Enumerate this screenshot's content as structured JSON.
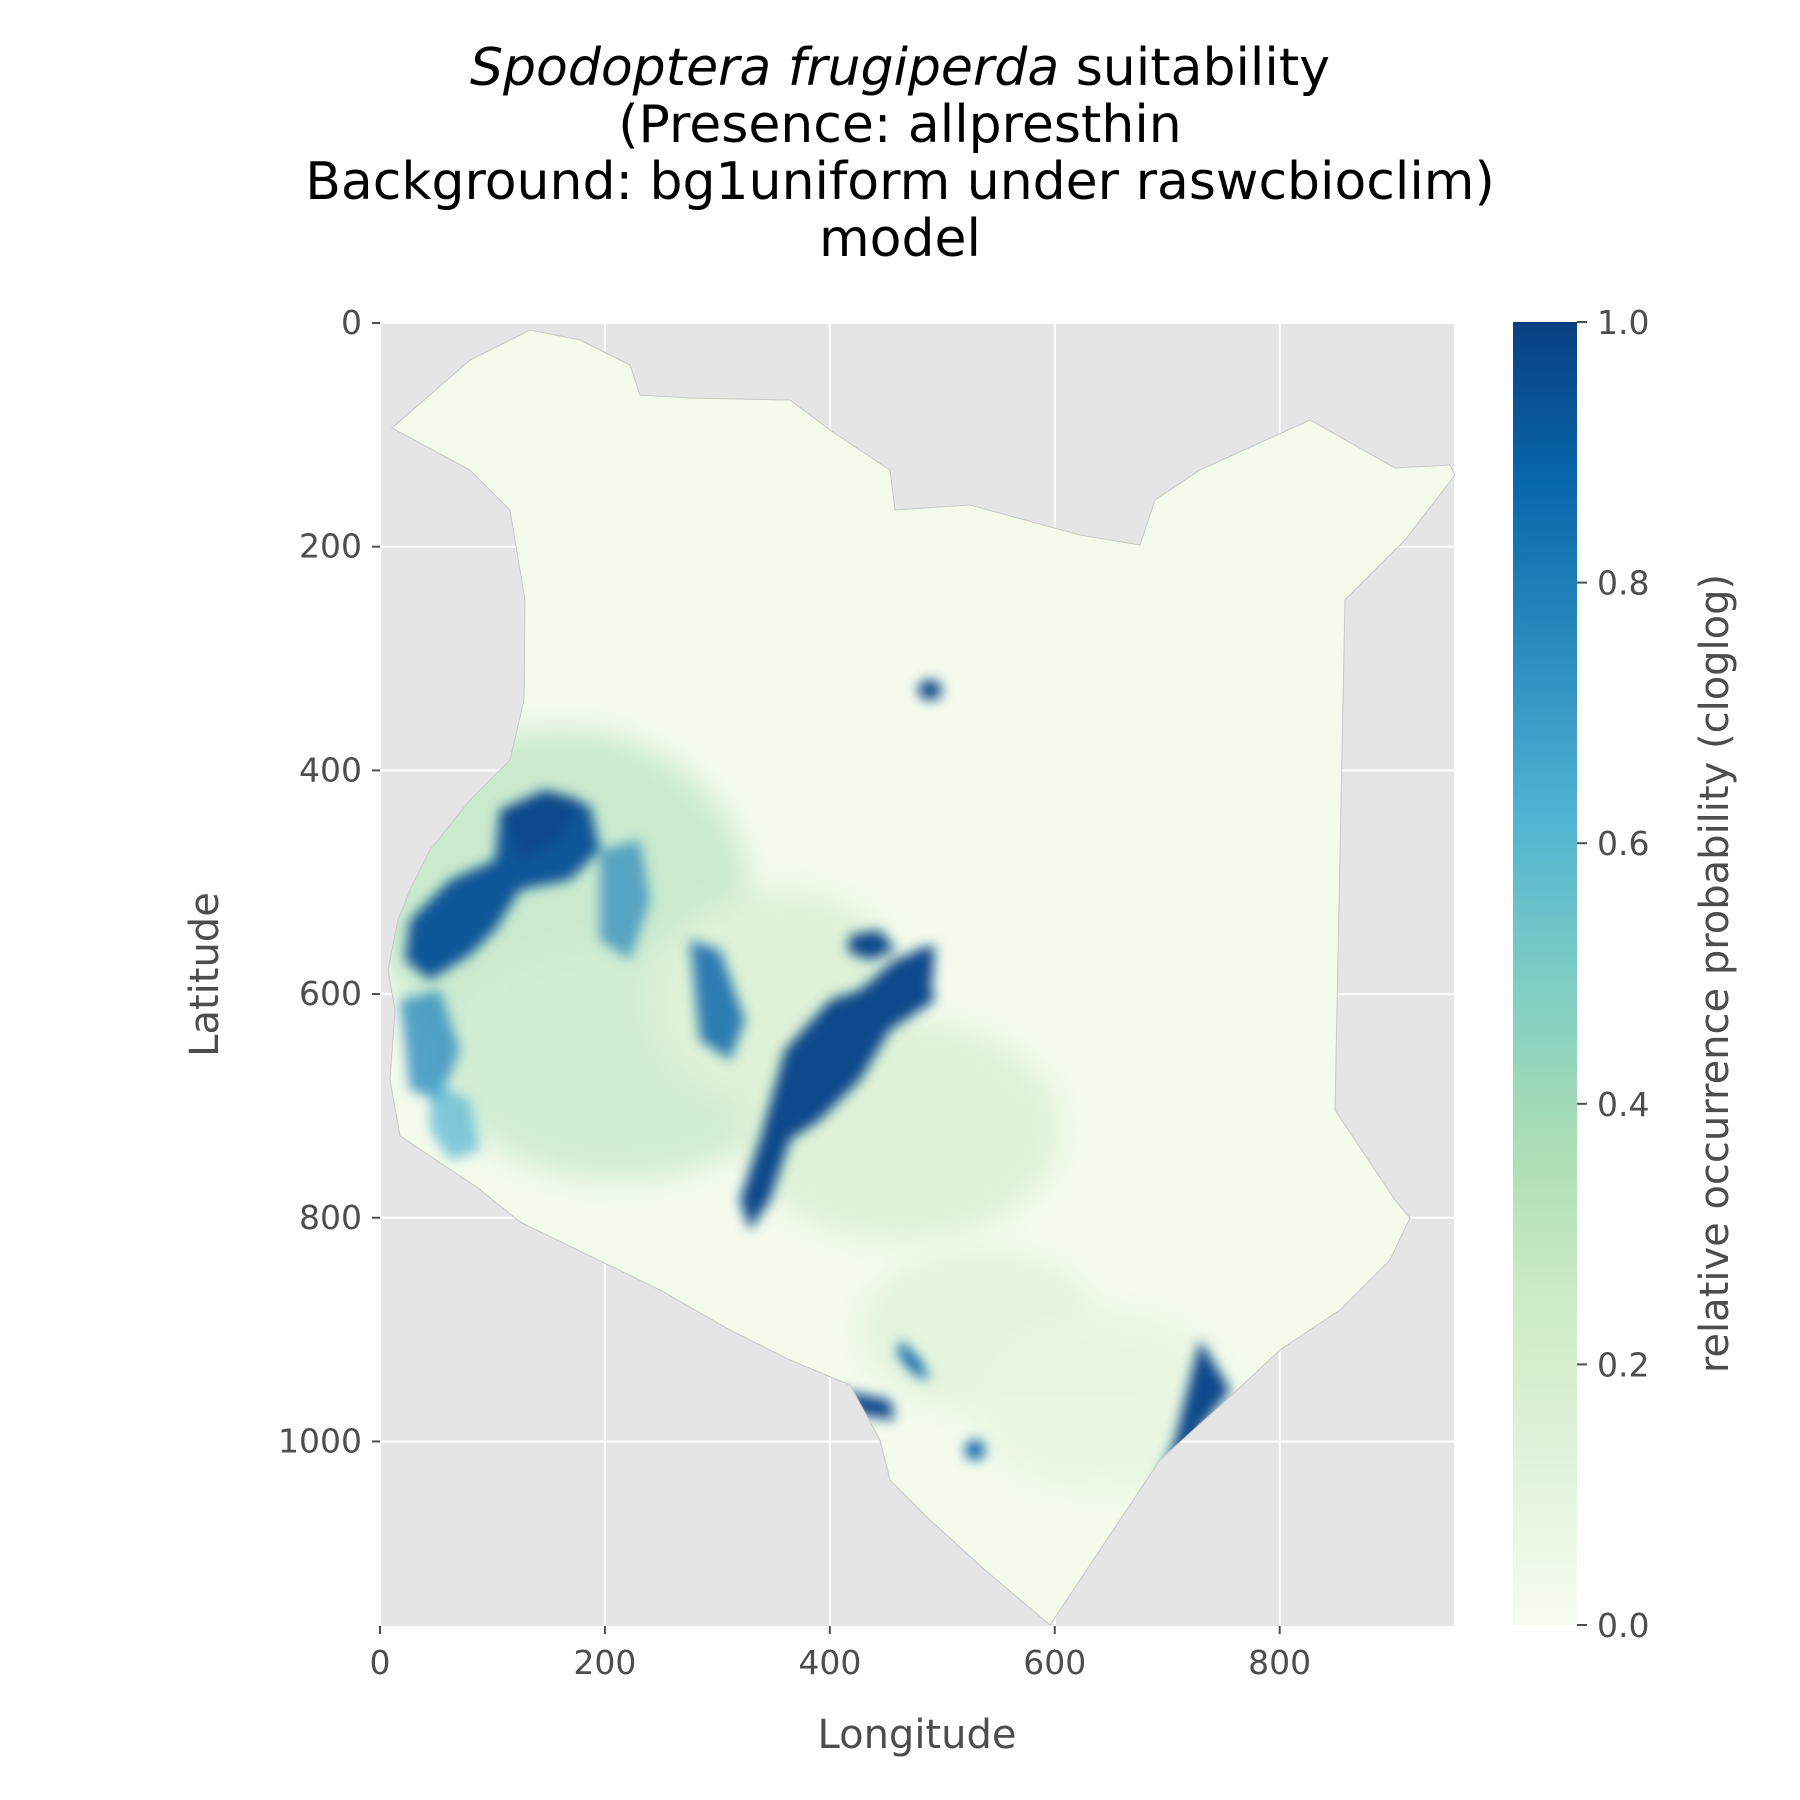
{
  "figure": {
    "title": {
      "species": "Spodoptera frugiperda",
      "line1_rest": " suitability",
      "line2": "(Presence: allpresthin",
      "line3": "Background: bg1uniform under raswcbioclim)",
      "line4": "model"
    }
  },
  "chart_data": {
    "type": "heatmap",
    "title": "Spodoptera frugiperda suitability (Presence: allpresthin Background: bg1uniform under raswcbioclim) model",
    "xlabel": "Longitude",
    "ylabel": "Latitude",
    "xlim": [
      0,
      955
    ],
    "ylim": [
      1165,
      0
    ],
    "x_ticks": [
      0,
      200,
      400,
      600,
      800
    ],
    "y_ticks": [
      0,
      200,
      400,
      600,
      800,
      1000
    ],
    "grid": true,
    "colorbar": {
      "label": "relative occurrence probability (cloglog)",
      "range": [
        0.0,
        1.0
      ],
      "ticks": [
        "0.0",
        "0.2",
        "0.4",
        "0.6",
        "0.8",
        "1.0"
      ],
      "colormap": "GnBu",
      "stops": [
        "#f7fcf0",
        "#e0f3db",
        "#ccebc5",
        "#a8ddb5",
        "#7bccc4",
        "#4eb3d3",
        "#2b8cbe",
        "#0868ac",
        "#084081"
      ]
    },
    "colors": {
      "panel_background": "#e5e5e5",
      "gridline": "#ffffff",
      "low_suitability": "#f4fbed",
      "high_suitability": "#084a8b"
    }
  }
}
